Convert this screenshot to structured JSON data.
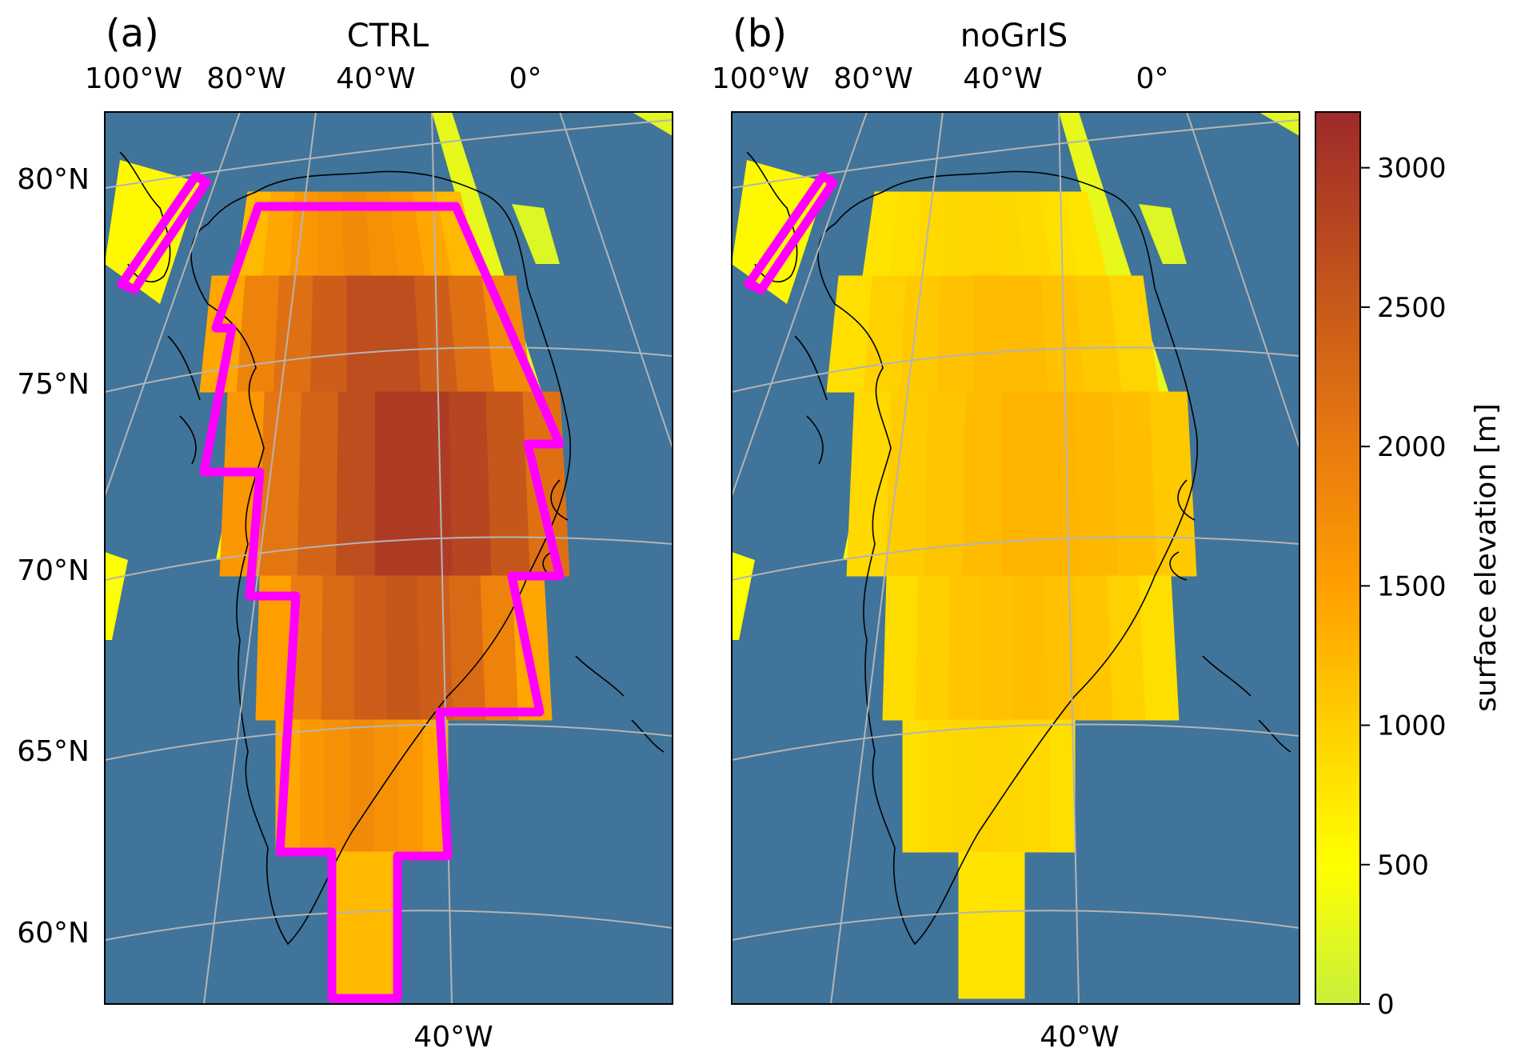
{
  "panels": [
    {
      "letter": "(a)",
      "title": "CTRL",
      "top_lon_labels": [
        "100°W",
        "80°W",
        "40°W",
        "0°"
      ],
      "bottom_lon_label": "40°W",
      "lat_labels": [
        "80°N",
        "75°N",
        "70°N",
        "65°N",
        "60°N"
      ]
    },
    {
      "letter": "(b)",
      "title": "noGrIS",
      "top_lon_labels": [
        "100°W",
        "80°W",
        "40°W",
        "0°"
      ],
      "bottom_lon_label": "40°W"
    }
  ],
  "colorbar": {
    "label": "surface elevation [m]",
    "ticks": [
      "0",
      "500",
      "1000",
      "1500",
      "2000",
      "2500",
      "3000"
    ],
    "min": 0,
    "max": 3200,
    "colors": [
      "#c8f03c",
      "#ffff00",
      "#ffd000",
      "#ff9e00",
      "#e87a10",
      "#c85a1a",
      "#9e2a2a"
    ]
  },
  "colors": {
    "ocean": "#40749a",
    "outline": "#ff00ff",
    "gridline": "#b4b4b4",
    "coast": "#000000"
  }
}
